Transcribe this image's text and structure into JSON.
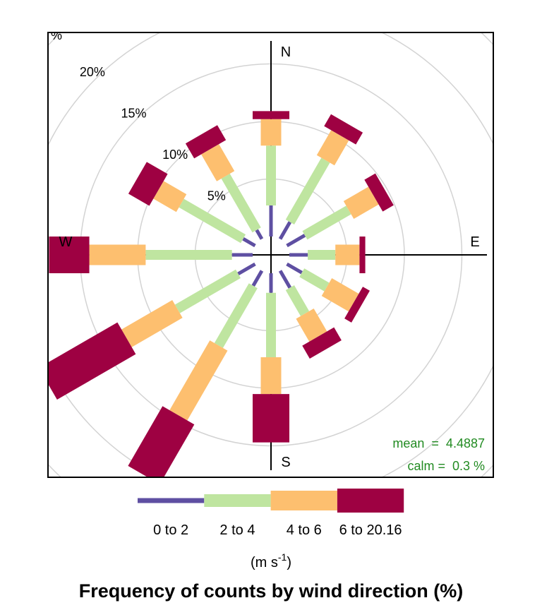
{
  "chart_data": {
    "type": "windrose",
    "title": "Frequency of counts by wind direction (%)",
    "axis_unit_label": "%",
    "radial_ticks": [
      5,
      10,
      15,
      20
    ],
    "radial_tick_labels": [
      "5%",
      "10%",
      "15%",
      "20%"
    ],
    "radial_grid_rings": [
      5,
      10,
      15,
      20,
      25,
      30
    ],
    "compass_labels": {
      "N": "N",
      "E": "E",
      "S": "S",
      "W": "W"
    },
    "legend": {
      "unit_text": "(m s",
      "unit_superscript": "-1",
      "unit_close": ")"
    },
    "speed_bins": [
      {
        "label": "0 to 2",
        "color": "#5E4FA2"
      },
      {
        "label": "2 to 4",
        "color": "#BFE5A0"
      },
      {
        "label": "4 to 6",
        "color": "#FDBF6F"
      },
      {
        "label": "6 to 20.16",
        "color": "#9E0142"
      }
    ],
    "directions": [
      0,
      30,
      60,
      90,
      120,
      150,
      180,
      210,
      240,
      270,
      300,
      330
    ],
    "cumulative_percent": [
      [
        2.7,
        7.9,
        10.2,
        10.9
      ],
      [
        1.7,
        7.9,
        10.4,
        11.6
      ],
      [
        1.8,
        6.2,
        8.7,
        9.8
      ],
      [
        1.6,
        4.0,
        6.1,
        6.6
      ],
      [
        1.5,
        4.0,
        6.7,
        7.4
      ],
      [
        1.7,
        4.3,
        6.6,
        7.9
      ],
      [
        1.7,
        7.3,
        10.5,
        14.7
      ],
      [
        1.5,
        7.5,
        14.5,
        20.5
      ],
      [
        1.7,
        7.8,
        12.9,
        20.8
      ],
      [
        1.8,
        9.3,
        14.2,
        17.7
      ],
      [
        1.2,
        7.4,
        9.7,
        11.8
      ],
      [
        0.9,
        6.3,
        9.0,
        10.5
      ]
    ],
    "mean_label": "mean  =  4.4887",
    "calm_label": "calm =  0.3 %",
    "stat_color": "#228B22"
  }
}
